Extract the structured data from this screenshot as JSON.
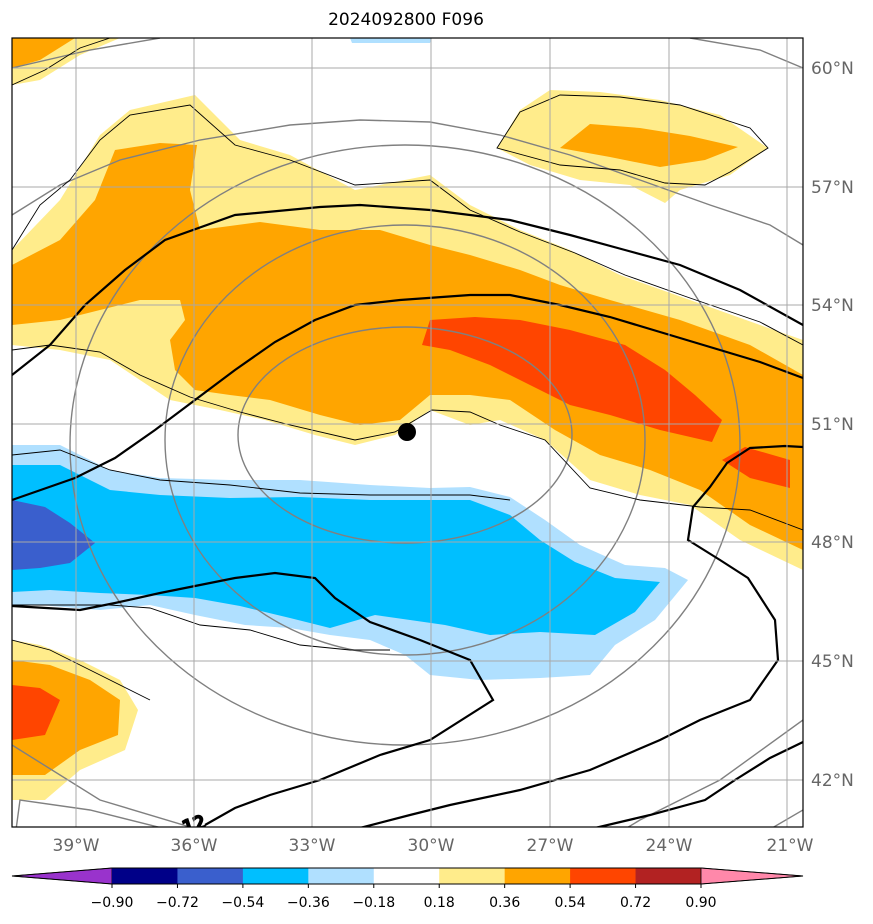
{
  "title": "2024092800 F096",
  "lon_labels": [
    "39°W",
    "36°W",
    "33°W",
    "30°W",
    "27°W",
    "24°W",
    "21°W"
  ],
  "lat_labels": [
    "60°N",
    "57°N",
    "54°N",
    "51°N",
    "48°N",
    "45°N",
    "42°N"
  ],
  "contour_label": "12",
  "colorbar": {
    "ticks": [
      "−0.90",
      "−0.72",
      "−0.54",
      "−0.36",
      "−0.18",
      "0.18",
      "0.36",
      "0.54",
      "0.72",
      "0.90"
    ],
    "colors": [
      "#9933cc",
      "#000088",
      "#3a5fcd",
      "#00bfff",
      "#b0e0ff",
      "#ffffff",
      "#ffec8b",
      "#ffa500",
      "#ff4500",
      "#b22222",
      "#ff88aa"
    ]
  },
  "map": {
    "lon_range": [
      -40.5,
      -20.5
    ],
    "lat_range": [
      40.8,
      60.8
    ],
    "marker": {
      "lon": -30.7,
      "lat": 50.8
    },
    "fill_colors": {
      "light_yellow": "#ffec8b",
      "orange": "#ffa500",
      "red_orange": "#ff4500",
      "light_blue": "#b0e0ff",
      "deep_sky_blue": "#00bfff",
      "royal_blue": "#3a5fcd"
    }
  }
}
